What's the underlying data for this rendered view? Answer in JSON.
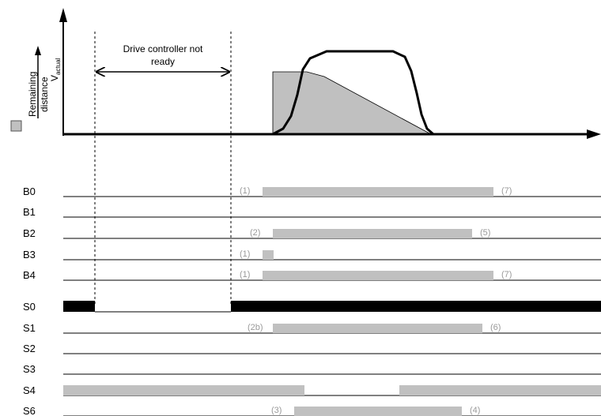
{
  "annotation": {
    "line1": "Drive controller not",
    "line2": "ready"
  },
  "y_axis": {
    "v_main": "V",
    "v_sub": "actual",
    "remaining_line1": "Remaining",
    "remaining_line2": "distance"
  },
  "legend_swatch_color": "#c0c0c0",
  "colors": {
    "bar": "#c0c0c0",
    "line": "#000000",
    "annotation": "#9a9a9a"
  },
  "signals": [
    {
      "name": "B0",
      "markers": [
        {
          "text": "(1)"
        },
        {
          "text": "(7)"
        }
      ]
    },
    {
      "name": "B1",
      "markers": []
    },
    {
      "name": "B2",
      "markers": [
        {
          "text": "(2)"
        },
        {
          "text": "(5)"
        }
      ]
    },
    {
      "name": "B3",
      "markers": [
        {
          "text": "(1)"
        }
      ]
    },
    {
      "name": "B4",
      "markers": [
        {
          "text": "(1)"
        },
        {
          "text": "(7)"
        }
      ]
    },
    {
      "name": "S0",
      "markers": []
    },
    {
      "name": "S1",
      "markers": [
        {
          "text": "(2b)"
        },
        {
          "text": "(6)"
        }
      ]
    },
    {
      "name": "S2",
      "markers": []
    },
    {
      "name": "S3",
      "markers": []
    },
    {
      "name": "S4",
      "markers": []
    },
    {
      "name": "S6",
      "markers": [
        {
          "text": "(3)"
        },
        {
          "text": "(4)"
        }
      ]
    }
  ]
}
